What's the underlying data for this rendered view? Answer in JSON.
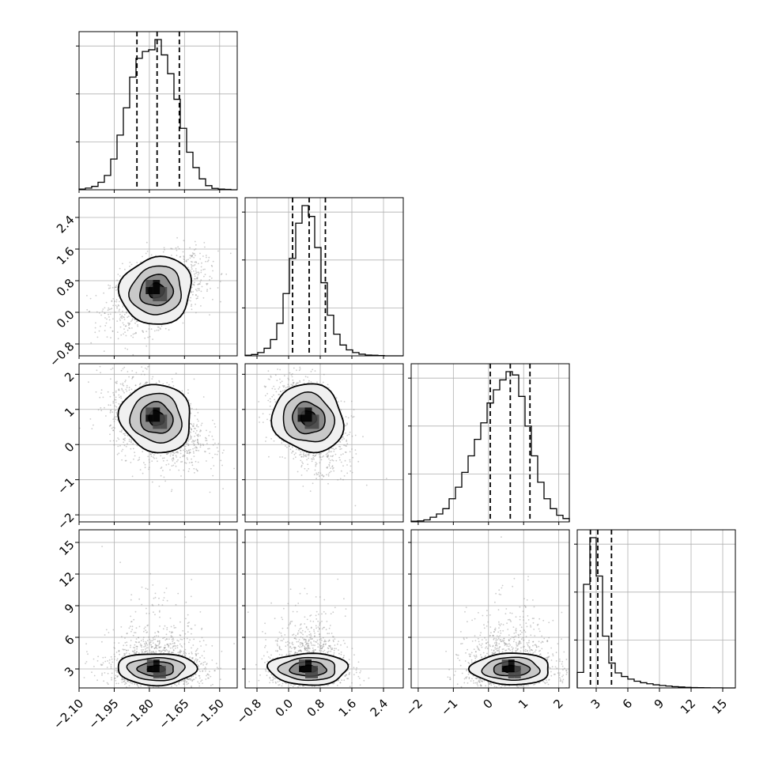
{
  "chart_data": {
    "type": "corner",
    "n_params": 4,
    "colors": {
      "frame": "#000000",
      "grid": "#b0b0b0",
      "scatter": "#8c8c8c",
      "background": "#ffffff"
    },
    "grid": true,
    "params": [
      {
        "range": [
          -2.1,
          -1.425
        ],
        "ticks": [
          -2.1,
          -1.95,
          -1.8,
          -1.65,
          -1.5
        ],
        "tick_labels": [
          "−2.10",
          "−1.95",
          "−1.80",
          "−1.65",
          "−1.50"
        ],
        "quantiles": [
          -1.853,
          -1.767,
          -1.672
        ],
        "hist_edges": [
          -2.1,
          -2.073,
          -2.046,
          -2.019,
          -1.992,
          -1.965,
          -1.938,
          -1.911,
          -1.884,
          -1.857,
          -1.83,
          -1.803,
          -1.776,
          -1.749,
          -1.722,
          -1.695,
          -1.668,
          -1.641,
          -1.614,
          -1.587,
          -1.56,
          -1.533,
          -1.506,
          -1.479,
          -1.452,
          -1.425
        ],
        "hist_counts": [
          2,
          5,
          10,
          22,
          42,
          90,
          160,
          240,
          330,
          385,
          405,
          410,
          440,
          395,
          340,
          265,
          180,
          110,
          65,
          32,
          12,
          4,
          2,
          1,
          0
        ]
      },
      {
        "range": [
          -1.1,
          2.9
        ],
        "ticks": [
          -0.8,
          0.0,
          0.8,
          1.6,
          2.4
        ],
        "tick_labels": [
          "−0.8",
          "0.0",
          "0.8",
          "1.6",
          "2.4"
        ],
        "quantiles": [
          0.1,
          0.52,
          0.93
        ],
        "hist_edges": [
          -1.1,
          -0.94,
          -0.78,
          -0.62,
          -0.46,
          -0.3,
          -0.14,
          0.02,
          0.18,
          0.34,
          0.5,
          0.66,
          0.82,
          0.98,
          1.14,
          1.3,
          1.46,
          1.62,
          1.78,
          1.94,
          2.1,
          2.26,
          2.42,
          2.58,
          2.74,
          2.9
        ],
        "hist_counts": [
          2,
          5,
          12,
          28,
          60,
          120,
          230,
          360,
          490,
          555,
          515,
          400,
          270,
          150,
          80,
          40,
          22,
          12,
          6,
          3,
          2,
          1,
          0,
          0,
          0
        ]
      },
      {
        "range": [
          -2.2,
          2.3
        ],
        "ticks": [
          -2,
          -1,
          0,
          1,
          2
        ],
        "tick_labels": [
          "−2",
          "−1",
          "0",
          "1",
          "2"
        ],
        "quantiles": [
          0.05,
          0.62,
          1.18
        ],
        "hist_edges": [
          -2.2,
          -2.02,
          -1.84,
          -1.66,
          -1.48,
          -1.3,
          -1.12,
          -0.94,
          -0.76,
          -0.58,
          -0.4,
          -0.22,
          -0.04,
          0.14,
          0.32,
          0.5,
          0.68,
          0.86,
          1.04,
          1.22,
          1.4,
          1.58,
          1.76,
          1.94,
          2.12,
          2.3
        ],
        "hist_counts": [
          2,
          3,
          6,
          14,
          24,
          40,
          70,
          105,
          150,
          200,
          250,
          300,
          360,
          400,
          430,
          455,
          445,
          380,
          290,
          200,
          120,
          70,
          40,
          20,
          10
        ]
      },
      {
        "range": [
          1.2,
          16.2
        ],
        "ticks": [
          3,
          6,
          9,
          12,
          15
        ],
        "tick_labels": [
          "3",
          "6",
          "9",
          "12",
          "15"
        ],
        "quantiles": [
          2.45,
          3.15,
          4.45
        ],
        "hist_edges": [
          1.2,
          1.8,
          2.4,
          3.0,
          3.6,
          4.2,
          4.8,
          5.4,
          6.0,
          6.6,
          7.2,
          7.8,
          8.4,
          9.0,
          9.6,
          10.2,
          10.8,
          11.4,
          12.0,
          12.6,
          13.2,
          13.8,
          14.4,
          15.0,
          15.6,
          16.2
        ],
        "hist_counts": [
          150,
          1000,
          1450,
          1080,
          500,
          240,
          145,
          110,
          85,
          65,
          50,
          40,
          30,
          24,
          18,
          12,
          9,
          6,
          4,
          3,
          2,
          1,
          1,
          0,
          0
        ]
      }
    ],
    "correlations": {
      "1-0": 0.45,
      "2-0": -0.35,
      "2-1": -0.4,
      "3-0": 0.0,
      "3-1": 0.0,
      "3-2": 0.0
    },
    "density_peaks": {
      "1-0": [
        -1.77,
        0.55
      ],
      "2-0": [
        -1.77,
        0.75
      ],
      "2-1": [
        0.5,
        0.75
      ],
      "3-0": [
        -1.77,
        3.0
      ],
      "3-1": [
        0.5,
        3.0
      ],
      "3-2": [
        0.65,
        3.0
      ]
    },
    "scatter_points": 1500
  }
}
